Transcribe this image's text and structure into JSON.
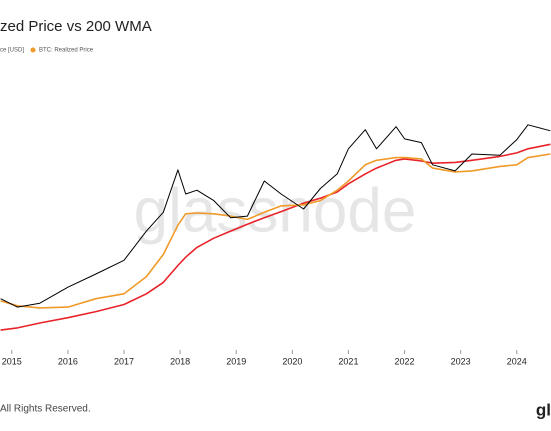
{
  "chart_data": {
    "type": "line",
    "title": "zed Price vs 200 WMA",
    "watermark": "glassnode",
    "footer": "All Rights Reserved.",
    "logo": "gl",
    "legend": "top-left",
    "log_y": true,
    "grid": false,
    "x": [
      2014.8,
      2015.1,
      2015.5,
      2016.0,
      2016.5,
      2017.0,
      2017.4,
      2017.7,
      2017.96,
      2018.1,
      2018.3,
      2018.6,
      2018.9,
      2019.2,
      2019.5,
      2019.8,
      2020.2,
      2020.5,
      2020.8,
      2021.0,
      2021.3,
      2021.5,
      2021.85,
      2022.0,
      2022.3,
      2022.5,
      2022.9,
      2023.2,
      2023.7,
      2024.0,
      2024.2,
      2024.6
    ],
    "xlim": [
      2014.79,
      2024.61
    ],
    "xticks": [
      2015,
      2016,
      2017,
      2018,
      2019,
      2020,
      2021,
      2022,
      2023,
      2024
    ],
    "ylim": [
      60,
      1000000
    ],
    "series": [
      {
        "name": "ce [USD]",
        "color": "#000000",
        "values": [
          300,
          230,
          260,
          430,
          650,
          1000,
          2500,
          4500,
          17000,
          8000,
          9000,
          6500,
          3800,
          4000,
          12000,
          8000,
          5000,
          9500,
          15000,
          33000,
          60000,
          33000,
          66000,
          45000,
          40000,
          20000,
          16500,
          28000,
          27000,
          44000,
          70000,
          58000
        ]
      },
      {
        "name": "BTC: Realized Price",
        "color": "#f09a2a",
        "values": [
          280,
          240,
          225,
          230,
          300,
          350,
          600,
          1200,
          3000,
          4300,
          4400,
          4300,
          4000,
          3600,
          4500,
          5500,
          5700,
          6500,
          9000,
          12000,
          20000,
          23000,
          25000,
          25000,
          24000,
          18000,
          16000,
          16500,
          19000,
          20000,
          25000,
          28000
        ]
      },
      {
        "color": "#e8242a",
        "values": [
          112,
          120,
          140,
          165,
          200,
          250,
          350,
          500,
          850,
          1100,
          1500,
          2000,
          2500,
          3100,
          3800,
          4600,
          6000,
          7000,
          8500,
          11000,
          15000,
          18000,
          23000,
          24000,
          22500,
          21000,
          21500,
          23000,
          26000,
          29000,
          33000,
          38000
        ]
      }
    ]
  }
}
